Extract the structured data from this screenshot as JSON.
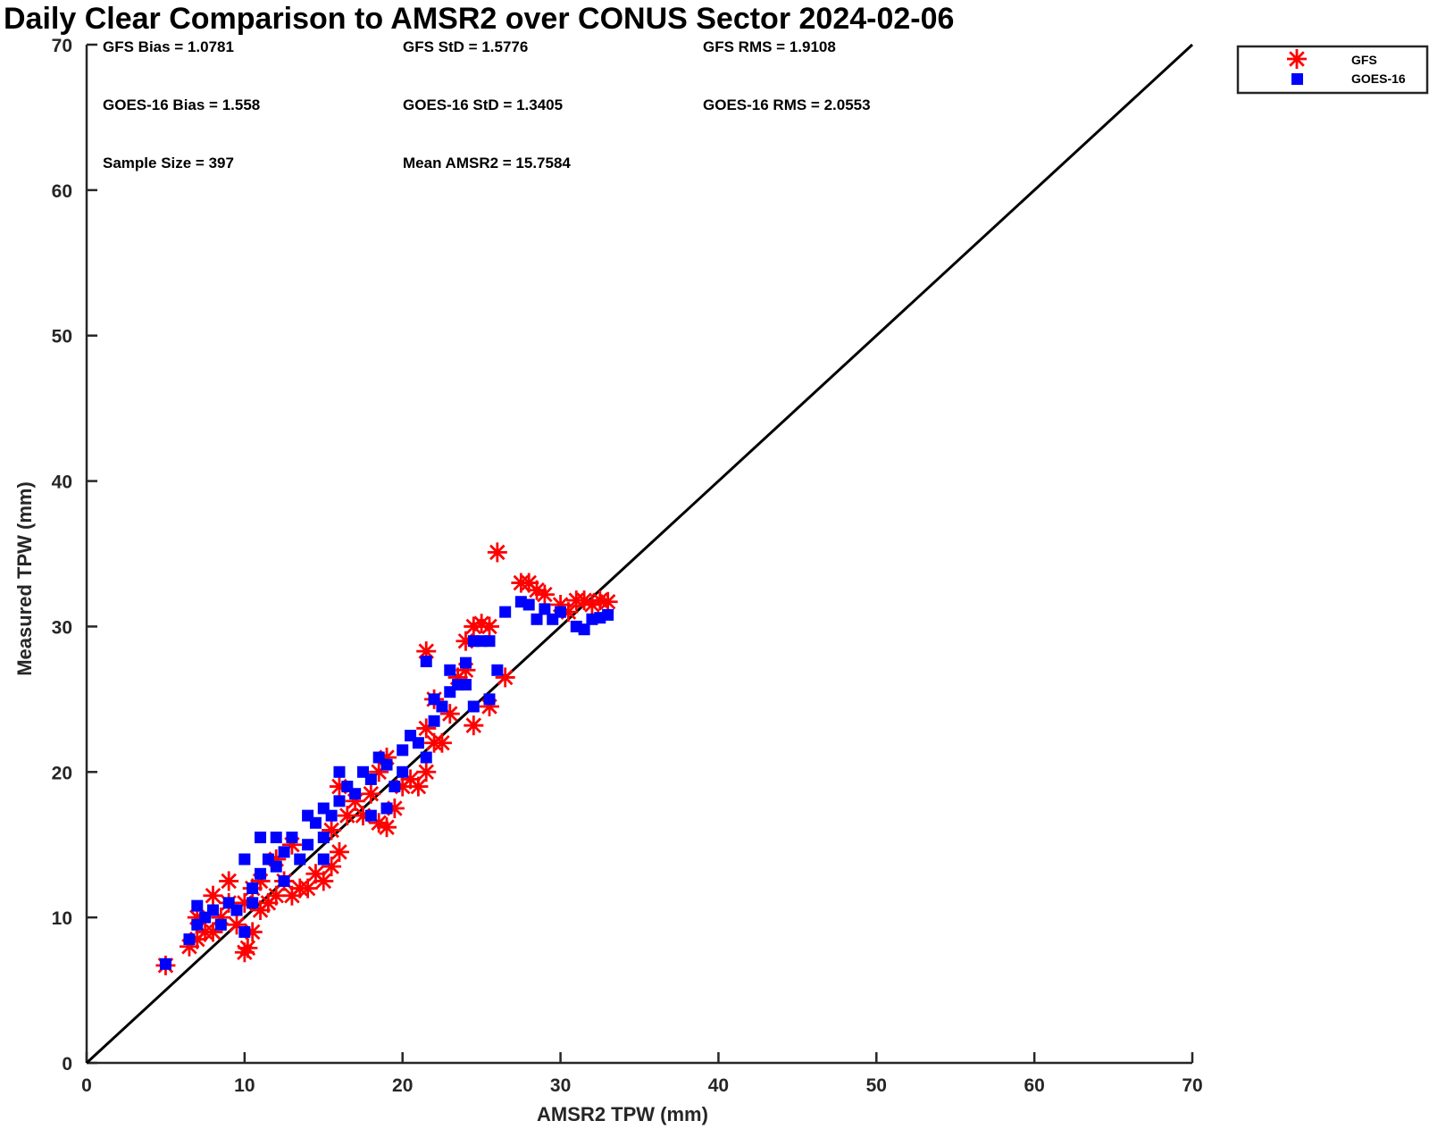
{
  "chart_data": {
    "type": "scatter",
    "title": "Daily Clear Comparison to AMSR2 over CONUS Sector 2024-02-06",
    "xlabel": "AMSR2 TPW (mm)",
    "ylabel": "Measured TPW (mm)",
    "xlim": [
      0,
      70
    ],
    "ylim": [
      0,
      70
    ],
    "xticks": [
      0,
      10,
      20,
      30,
      40,
      50,
      60,
      70
    ],
    "yticks": [
      0,
      10,
      20,
      30,
      40,
      50,
      60,
      70
    ],
    "grid": false,
    "legend_position": "outside top-right",
    "reference_line": {
      "from": [
        0,
        0
      ],
      "to": [
        70,
        70
      ],
      "color": "#000000"
    },
    "stats": [
      [
        "GFS Bias = 1.0781",
        "GFS StD = 1.5776",
        "GFS RMS = 1.9108"
      ],
      [
        "GOES-16 Bias = 1.558",
        "GOES-16 StD = 1.3405",
        "GOES-16 RMS = 2.0553"
      ],
      [
        "Sample Size = 397",
        "Mean AMSR2 = 15.7584"
      ]
    ],
    "series": [
      {
        "name": "GFS",
        "marker": "asterisk",
        "color": "#ff0000",
        "points": [
          [
            5.0,
            6.7
          ],
          [
            6.5,
            8.0
          ],
          [
            7.0,
            8.5
          ],
          [
            7.5,
            9.0
          ],
          [
            7.0,
            10.0
          ],
          [
            8.0,
            9.0
          ],
          [
            8.5,
            10.0
          ],
          [
            9.0,
            11.0
          ],
          [
            9.5,
            9.5
          ],
          [
            10.0,
            7.6
          ],
          [
            10.2,
            7.9
          ],
          [
            10.5,
            9.0
          ],
          [
            10.0,
            11.0
          ],
          [
            10.5,
            12.0
          ],
          [
            11.0,
            10.5
          ],
          [
            11.5,
            11.0
          ],
          [
            11.0,
            12.5
          ],
          [
            12.0,
            11.5
          ],
          [
            12.5,
            12.5
          ],
          [
            13.0,
            11.5
          ],
          [
            13.5,
            12.0
          ],
          [
            14.0,
            12.0
          ],
          [
            14.5,
            13.0
          ],
          [
            15.0,
            12.5
          ],
          [
            15.5,
            13.5
          ],
          [
            16.0,
            14.5
          ],
          [
            15.5,
            16.0
          ],
          [
            16.0,
            19.0
          ],
          [
            16.5,
            17.0
          ],
          [
            17.0,
            18.0
          ],
          [
            17.5,
            17.0
          ],
          [
            18.0,
            18.5
          ],
          [
            18.5,
            16.5
          ],
          [
            19.0,
            16.2
          ],
          [
            19.5,
            17.5
          ],
          [
            18.5,
            20.0
          ],
          [
            19.0,
            21.0
          ],
          [
            20.0,
            19.0
          ],
          [
            20.5,
            19.5
          ],
          [
            21.0,
            19.0
          ],
          [
            21.5,
            20.0
          ],
          [
            21.5,
            23.0
          ],
          [
            22.0,
            22.0
          ],
          [
            22.5,
            22.0
          ],
          [
            23.0,
            24.0
          ],
          [
            23.5,
            26.5
          ],
          [
            24.0,
            29.0
          ],
          [
            24.0,
            27.0
          ],
          [
            24.5,
            30.0
          ],
          [
            25.0,
            30.2
          ],
          [
            25.5,
            30.0
          ],
          [
            24.5,
            23.2
          ],
          [
            25.5,
            24.5
          ],
          [
            26.5,
            26.5
          ],
          [
            26.0,
            35.1
          ],
          [
            27.5,
            33.0
          ],
          [
            28.0,
            33.0
          ],
          [
            28.5,
            32.5
          ],
          [
            29.0,
            32.2
          ],
          [
            30.0,
            31.5
          ],
          [
            30.5,
            31.0
          ],
          [
            31.0,
            31.8
          ],
          [
            31.5,
            31.8
          ],
          [
            32.0,
            31.5
          ],
          [
            32.5,
            31.8
          ],
          [
            33.0,
            31.7
          ],
          [
            21.5,
            28.3
          ],
          [
            22.0,
            25.0
          ],
          [
            12.0,
            14.0
          ],
          [
            13.0,
            15.0
          ],
          [
            8.0,
            11.5
          ],
          [
            9.0,
            12.5
          ]
        ]
      },
      {
        "name": "GOES-16",
        "marker": "square",
        "color": "#0000ff",
        "points": [
          [
            5.0,
            6.8
          ],
          [
            6.5,
            8.5
          ],
          [
            7.0,
            9.5
          ],
          [
            7.0,
            10.8
          ],
          [
            7.5,
            10.0
          ],
          [
            8.0,
            10.5
          ],
          [
            8.5,
            9.5
          ],
          [
            9.0,
            11.0
          ],
          [
            9.5,
            10.5
          ],
          [
            10.0,
            9.0
          ],
          [
            10.0,
            14.0
          ],
          [
            10.5,
            12.0
          ],
          [
            11.0,
            13.0
          ],
          [
            11.0,
            15.5
          ],
          [
            11.5,
            14.0
          ],
          [
            12.0,
            13.5
          ],
          [
            12.0,
            15.5
          ],
          [
            12.5,
            14.5
          ],
          [
            13.0,
            15.5
          ],
          [
            13.5,
            14.0
          ],
          [
            14.0,
            17.0
          ],
          [
            14.0,
            15.0
          ],
          [
            14.5,
            16.5
          ],
          [
            15.0,
            15.5
          ],
          [
            15.5,
            17.0
          ],
          [
            15.0,
            17.5
          ],
          [
            16.0,
            18.0
          ],
          [
            16.0,
            20.0
          ],
          [
            16.5,
            19.0
          ],
          [
            17.0,
            18.5
          ],
          [
            17.5,
            20.0
          ],
          [
            18.0,
            19.5
          ],
          [
            18.5,
            21.0
          ],
          [
            19.0,
            20.5
          ],
          [
            19.0,
            17.5
          ],
          [
            19.5,
            19.0
          ],
          [
            20.0,
            21.5
          ],
          [
            20.5,
            22.5
          ],
          [
            21.0,
            22.0
          ],
          [
            21.5,
            21.0
          ],
          [
            22.0,
            23.5
          ],
          [
            22.0,
            25.0
          ],
          [
            22.5,
            24.5
          ],
          [
            23.0,
            25.5
          ],
          [
            23.5,
            26.0
          ],
          [
            23.0,
            27.0
          ],
          [
            24.0,
            27.5
          ],
          [
            24.5,
            29.0
          ],
          [
            25.0,
            29.0
          ],
          [
            25.5,
            29.0
          ],
          [
            24.5,
            24.5
          ],
          [
            25.5,
            25.0
          ],
          [
            26.0,
            27.0
          ],
          [
            26.5,
            31.0
          ],
          [
            27.5,
            31.7
          ],
          [
            28.0,
            31.5
          ],
          [
            28.5,
            30.5
          ],
          [
            29.0,
            31.2
          ],
          [
            29.5,
            30.5
          ],
          [
            30.0,
            31.0
          ],
          [
            31.0,
            30.0
          ],
          [
            31.5,
            29.8
          ],
          [
            32.0,
            30.5
          ],
          [
            32.5,
            30.6
          ],
          [
            33.0,
            30.8
          ],
          [
            21.5,
            27.6
          ],
          [
            24.0,
            26.0
          ],
          [
            15.0,
            14.0
          ],
          [
            12.5,
            12.5
          ],
          [
            10.5,
            11.0
          ],
          [
            18.0,
            17.0
          ],
          [
            20.0,
            20.0
          ]
        ]
      }
    ]
  }
}
